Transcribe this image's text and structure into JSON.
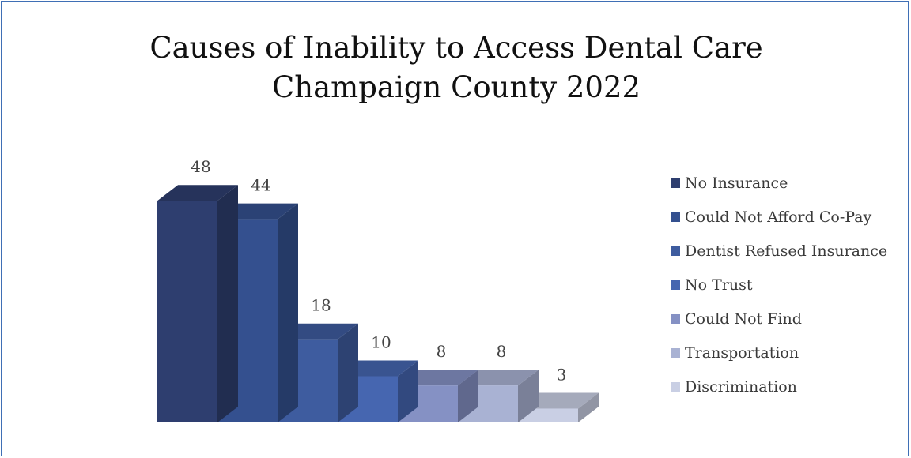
{
  "chart_data": {
    "type": "bar",
    "title_lines": [
      "Causes of Inability to Access Dental Care",
      "Champaign County 2022"
    ],
    "categories": [
      "No Insurance",
      "Could Not Afford Co-Pay",
      "Dentist Refused Insurance",
      "No Trust",
      "Could Not Find",
      "Transportation",
      "Discrimination"
    ],
    "values": [
      48,
      44,
      18,
      10,
      8,
      8,
      3
    ],
    "colors": [
      "#2e3e6f",
      "#34508f",
      "#3e5c9f",
      "#4666b0",
      "#8591c4",
      "#a9b2d3",
      "#c9cfe4"
    ],
    "legend_position": "right",
    "grid": false,
    "style": "3d-column"
  }
}
